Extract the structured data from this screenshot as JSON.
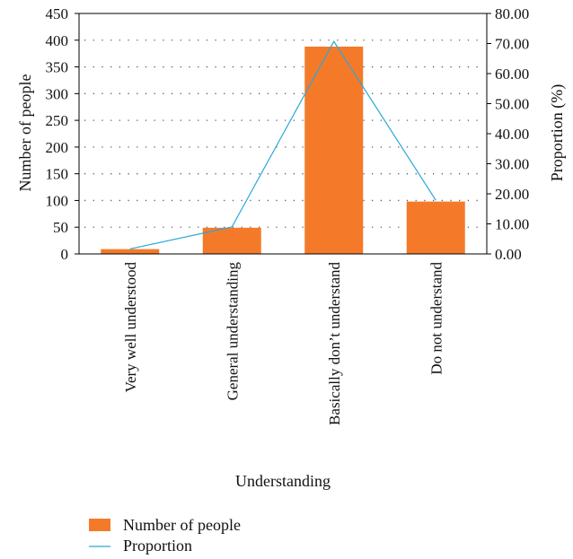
{
  "chart_data": {
    "type": "bar",
    "categories": [
      "Very well understood",
      "General understanding",
      "Basically don’t understand",
      "Do not understand"
    ],
    "series": [
      {
        "name": "Number of people",
        "type": "bar",
        "axis": "left",
        "values": [
          9,
          49,
          388,
          98
        ],
        "color": "#f47a2a"
      },
      {
        "name": "Proportion",
        "type": "line",
        "axis": "right",
        "values": [
          1.65,
          8.99,
          70.7,
          17.86
        ],
        "color": "#29a8d8"
      }
    ],
    "xlabel": "Understanding",
    "ylabel": "Number of people",
    "y2label": "Proportion (%)",
    "ylim": [
      0,
      450
    ],
    "y2lim": [
      0,
      80
    ],
    "yticks": [
      "0",
      "50",
      "100",
      "150",
      "200",
      "250",
      "300",
      "350",
      "400",
      "450"
    ],
    "y2ticks": [
      "0.00",
      "10.00",
      "20.00",
      "30.00",
      "40.00",
      "50.00",
      "60.00",
      "70.00",
      "80.00"
    ],
    "grid": "dotted horizontal",
    "legend_position": "bottom-left"
  }
}
